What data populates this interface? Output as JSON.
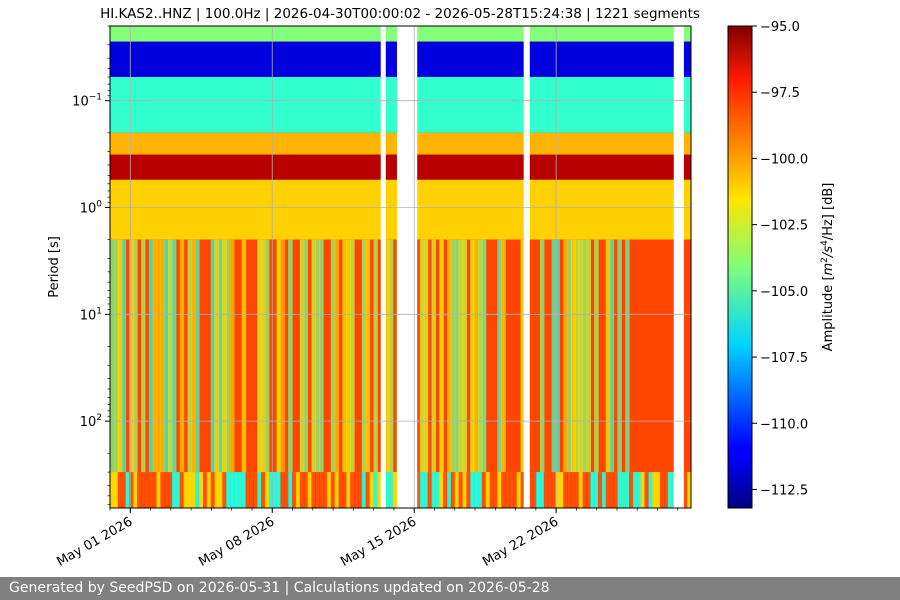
{
  "chart_data": {
    "type": "heatmap",
    "title": "HI.KAS2..HNZ | 100.0Hz | 2026-04-30T00:00:02 - 2026-05-28T15:24:38 | 1221 segments",
    "ylabel": "Period [s]",
    "colorbar_label": "Amplitude [m²/s⁴/Hz] [dB]",
    "colorbar_label_parts": {
      "main": "Amplitude [",
      "m": "m",
      "m_exp": "2",
      "slash": "/s",
      "s_exp": "4",
      "rest": "/Hz] [dB]"
    },
    "colormap": "jet",
    "y_scale": "log",
    "y_inverted": true,
    "ylim": [
      0.02,
      650
    ],
    "x_tick_labels": [
      "May 01 2026",
      "May 08 2026",
      "May 15 2026",
      "May 22 2026"
    ],
    "x_tick_days": [
      1,
      8,
      15,
      22
    ],
    "xlim_days": [
      0.0,
      28.65
    ],
    "y_ticks": [
      {
        "base": "10",
        "exp": "−1",
        "value": 0.1
      },
      {
        "base": "10",
        "exp": "0",
        "value": 1
      },
      {
        "base": "10",
        "exp": "1",
        "value": 10
      },
      {
        "base": "10",
        "exp": "2",
        "value": 100
      }
    ],
    "colorbar_range": [
      -113.2,
      -95.0
    ],
    "colorbar_ticks": [
      {
        "label": "−95.0",
        "value": -95.0
      },
      {
        "label": "−97.5",
        "value": -97.5
      },
      {
        "label": "−100.0",
        "value": -100.0
      },
      {
        "label": "−102.5",
        "value": -102.5
      },
      {
        "label": "−105.0",
        "value": -105.0
      },
      {
        "label": "−107.5",
        "value": -107.5
      },
      {
        "label": "−110.0",
        "value": -110.0
      },
      {
        "label": "−112.5",
        "value": -112.5
      }
    ],
    "data_gaps_days": [
      [
        13.35,
        13.6
      ],
      [
        14.15,
        15.15
      ],
      [
        20.4,
        20.7
      ],
      [
        27.8,
        28.3
      ]
    ],
    "period_bands": [
      {
        "period_range": [
          0.02,
          0.028
        ],
        "amplitude_db": -104.0
      },
      {
        "period_range": [
          0.028,
          0.06
        ],
        "amplitude_db": -111.5
      },
      {
        "period_range": [
          0.06,
          0.2
        ],
        "amplitude_db": -105.5
      },
      {
        "period_range": [
          0.2,
          0.32
        ],
        "amplitude_db": -100.5
      },
      {
        "period_range": [
          0.32,
          0.55
        ],
        "amplitude_db": -96.0
      },
      {
        "period_range": [
          0.55,
          2.0
        ],
        "amplitude_db": -101.0
      },
      {
        "period_range": [
          2.0,
          300
        ],
        "amplitude_db": -98.5
      },
      {
        "period_range": [
          300,
          650
        ],
        "amplitude_db": -101.5
      }
    ]
  },
  "footer": {
    "text": "Generated by SeedPSD on 2026-05-31 | Calculations updated on 2026-05-28"
  }
}
